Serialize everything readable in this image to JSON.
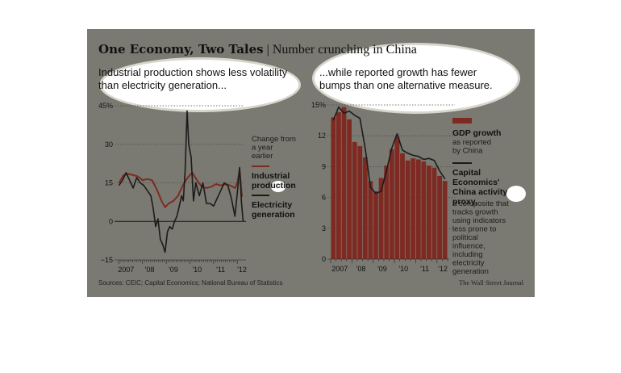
{
  "title": "One Economy, Two Tales",
  "title_separator": "|",
  "subtitle": "Number crunching in China",
  "source": "Sources: CEIC; Capital Economics; National Bureau of Statistics",
  "credit": "The Wall Street Journal",
  "colors": {
    "background": "#7a7a72",
    "red_series": "#7e2a22",
    "black_series": "#1b1b1b",
    "grid": "#4a4a44",
    "highlight": "#ffffff"
  },
  "chart_data": [
    {
      "type": "line",
      "panel_title": "Industrial production shows less volatility than electricity generation...",
      "y_ticks": [
        {
          "value": 45,
          "label": "45%"
        },
        {
          "value": 30,
          "label": "30"
        },
        {
          "value": 15,
          "label": "15"
        },
        {
          "value": 0,
          "label": "0"
        },
        {
          "value": -15,
          "label": "−15"
        }
      ],
      "ylim": [
        -15,
        45
      ],
      "xlim": [
        2006.95,
        2012.3
      ],
      "x_tick_labels": [
        {
          "x": 2007.3,
          "label": "2007"
        },
        {
          "x": 2008.3,
          "label": "'08"
        },
        {
          "x": 2009.3,
          "label": "'09"
        },
        {
          "x": 2010.3,
          "label": "'10"
        },
        {
          "x": 2011.3,
          "label": "'11"
        },
        {
          "x": 2012.2,
          "label": "'12"
        }
      ],
      "annotation": "Change from a year earlier",
      "series": [
        {
          "name": "Industrial production",
          "x": [
            2007.0,
            2007.2,
            2007.4,
            2007.6,
            2007.8,
            2008.0,
            2008.2,
            2008.4,
            2008.6,
            2008.8,
            2008.95,
            2009.1,
            2009.3,
            2009.5,
            2009.7,
            2009.9,
            2010.1,
            2010.3,
            2010.5,
            2010.7,
            2010.9,
            2011.1,
            2011.3,
            2011.5,
            2011.7,
            2011.9,
            2012.0,
            2012.1,
            2012.2
          ],
          "y": [
            15,
            18,
            18.5,
            18,
            17.5,
            16,
            16.5,
            16,
            12.5,
            8,
            5.5,
            7,
            8,
            10,
            14,
            17,
            19,
            16,
            13.5,
            13,
            13.5,
            14.5,
            14,
            14.5,
            14,
            13,
            15,
            20,
            9.5
          ]
        },
        {
          "name": "Electricity generation",
          "x": [
            2007.0,
            2007.15,
            2007.3,
            2007.45,
            2007.6,
            2007.75,
            2007.9,
            2008.05,
            2008.2,
            2008.35,
            2008.45,
            2008.55,
            2008.65,
            2008.75,
            2008.85,
            2008.95,
            2009.05,
            2009.15,
            2009.25,
            2009.35,
            2009.45,
            2009.55,
            2009.65,
            2009.72,
            2009.8,
            2009.88,
            2009.95,
            2010.05,
            2010.15,
            2010.25,
            2010.4,
            2010.55,
            2010.7,
            2010.85,
            2011.0,
            2011.15,
            2011.3,
            2011.45,
            2011.6,
            2011.75,
            2011.9,
            2012.0,
            2012.1,
            2012.18,
            2012.25
          ],
          "y": [
            14,
            16,
            19,
            16,
            13,
            17,
            15,
            14,
            12,
            10,
            5,
            -2,
            1,
            -7,
            -9,
            -12,
            -4,
            -2,
            -3,
            0,
            2,
            6,
            10,
            8,
            20,
            43,
            30,
            25,
            8,
            15,
            10,
            15,
            7,
            7,
            6,
            9,
            12,
            15,
            14,
            9,
            2,
            11,
            21,
            7,
            0
          ]
        }
      ]
    },
    {
      "type": "bar",
      "panel_title": "...while reported growth has fewer bumps than one alternative measure.",
      "y_ticks": [
        {
          "value": 15,
          "label": "15%"
        },
        {
          "value": 12,
          "label": "12"
        },
        {
          "value": 9,
          "label": "9"
        },
        {
          "value": 6,
          "label": "6"
        },
        {
          "value": 3,
          "label": "3"
        },
        {
          "value": 0,
          "label": "0"
        }
      ],
      "ylim": [
        0,
        15
      ],
      "x_tick_labels": [
        {
          "x": 2007.3,
          "label": "2007"
        },
        {
          "x": 2008.3,
          "label": "'08"
        },
        {
          "x": 2009.3,
          "label": "'09"
        },
        {
          "x": 2010.3,
          "label": "'10"
        },
        {
          "x": 2011.3,
          "label": "'11"
        },
        {
          "x": 2012.15,
          "label": "'12"
        }
      ],
      "series": [
        {
          "name": "GDP growth",
          "note": "as reported by China",
          "x": [
            2007.0,
            2007.25,
            2007.5,
            2007.75,
            2008.0,
            2008.25,
            2008.5,
            2008.75,
            2009.0,
            2009.25,
            2009.5,
            2009.75,
            2010.0,
            2010.25,
            2010.5,
            2010.75,
            2011.0,
            2011.25,
            2011.5,
            2011.75,
            2012.0,
            2012.25
          ],
          "y": [
            13.8,
            14.3,
            14.8,
            13.6,
            11.4,
            11.0,
            9.9,
            7.6,
            6.6,
            7.9,
            9.1,
            10.7,
            11.9,
            10.3,
            9.6,
            9.8,
            9.7,
            9.5,
            9.1,
            8.9,
            8.1,
            7.6
          ]
        },
        {
          "name": "Capital Economics' China activity proxy,",
          "note": "a composite that tracks growth using indicators less prone to political influence, including electricity generation",
          "x": [
            2007.0,
            2007.25,
            2007.5,
            2007.75,
            2008.0,
            2008.25,
            2008.5,
            2008.75,
            2009.0,
            2009.25,
            2009.5,
            2009.75,
            2010.0,
            2010.25,
            2010.5,
            2010.75,
            2011.0,
            2011.25,
            2011.5,
            2011.75,
            2012.0,
            2012.25
          ],
          "y": [
            13.5,
            14.8,
            14.2,
            14.4,
            14.0,
            13.7,
            10.8,
            7.0,
            6.4,
            6.6,
            8.6,
            10.8,
            12.2,
            10.6,
            10.3,
            10.1,
            10.0,
            9.7,
            9.8,
            9.6,
            8.6,
            7.8
          ]
        }
      ]
    }
  ]
}
